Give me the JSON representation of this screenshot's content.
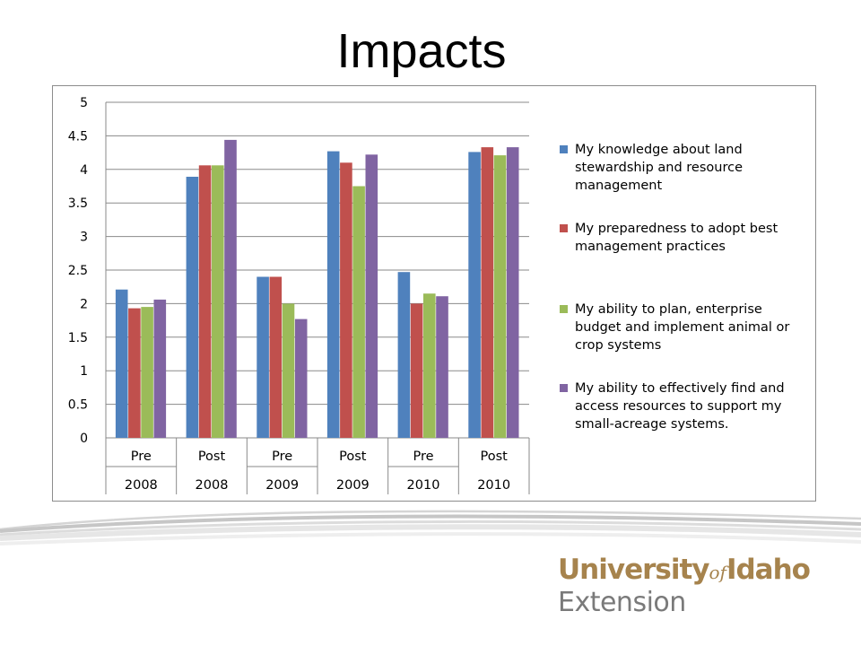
{
  "slide": {
    "title": "Impacts"
  },
  "brand": {
    "name_part1": "University",
    "name_of": "of",
    "name_part2": "Idaho",
    "division": "Extension"
  },
  "colors": {
    "series": [
      "#4f81bd",
      "#c0504d",
      "#9bbb59",
      "#8064a2"
    ],
    "brand_gold": "#a6834d",
    "brand_gray": "#7a7a7a"
  },
  "chart_data": {
    "type": "bar",
    "title": "",
    "xlabel": "",
    "ylabel": "",
    "ylim": [
      0,
      5
    ],
    "ytick_step": 0.5,
    "grid": true,
    "legend_position": "right",
    "categories": [
      {
        "stage": "Pre",
        "year": "2008"
      },
      {
        "stage": "Post",
        "year": "2008"
      },
      {
        "stage": "Pre",
        "year": "2009"
      },
      {
        "stage": "Post",
        "year": "2009"
      },
      {
        "stage": "Pre",
        "year": "2010"
      },
      {
        "stage": "Post",
        "year": "2010"
      }
    ],
    "series": [
      {
        "name": "My knowledge about land stewardship and resource management",
        "values": [
          2.21,
          3.89,
          2.4,
          4.27,
          2.47,
          4.26
        ]
      },
      {
        "name": "My preparedness to adopt best management practices",
        "values": [
          1.93,
          4.06,
          2.4,
          4.1,
          2.0,
          4.33
        ]
      },
      {
        "name": "My ability to plan, enterprise budget and implement animal or crop systems",
        "values": [
          1.95,
          4.06,
          2.0,
          3.75,
          2.15,
          4.21
        ]
      },
      {
        "name": "My ability to effectively find and access resources to support my small-acreage systems.",
        "values": [
          2.06,
          4.44,
          1.77,
          4.22,
          2.11,
          4.33
        ]
      }
    ]
  }
}
